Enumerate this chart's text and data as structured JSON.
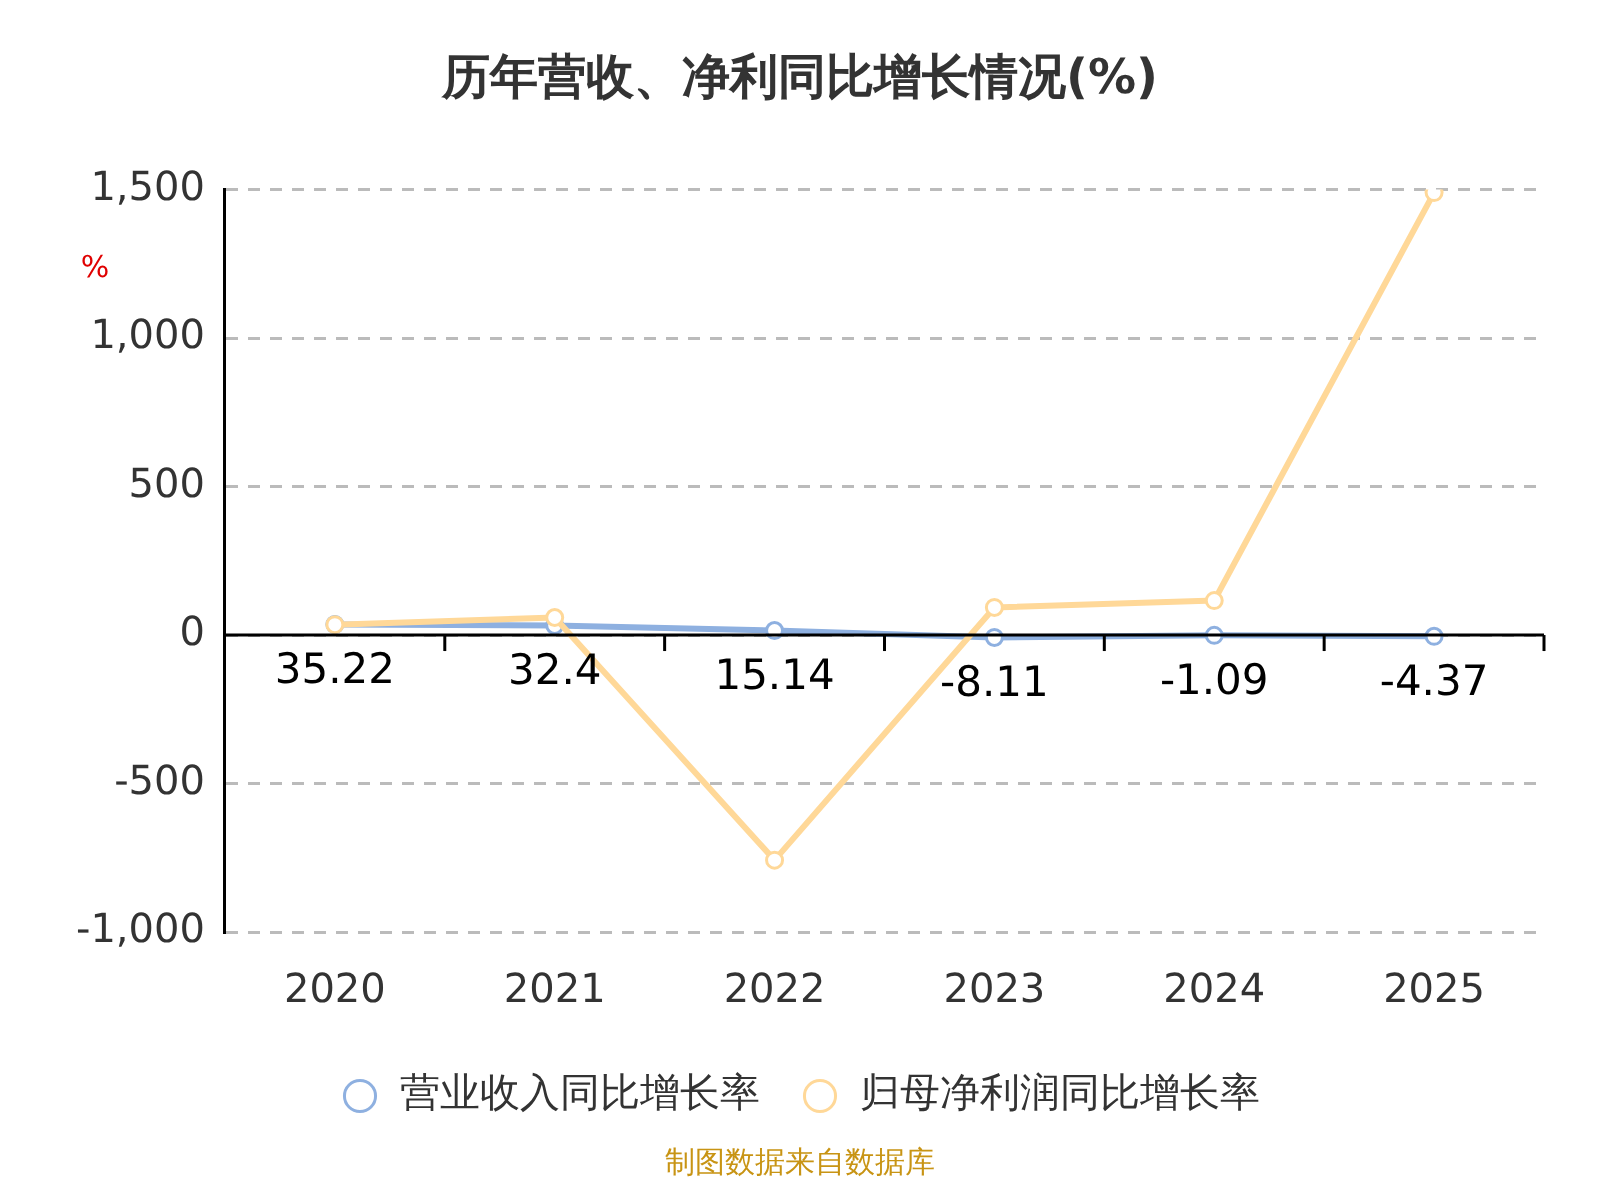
{
  "chart_data": {
    "type": "line",
    "title": "历年营收、净利同比增长情况(%)",
    "ylabel": "%",
    "categories": [
      "2020",
      "2021",
      "2022",
      "2023",
      "2024",
      "2025"
    ],
    "series": [
      {
        "name": "营业收入同比增长率",
        "color": "#8eb0e0",
        "values": [
          35.22,
          32.4,
          15.14,
          -8.11,
          -1.09,
          -4.37
        ],
        "value_labels": [
          "35.22",
          "32.4",
          "15.14",
          "-8.11",
          "-1.09",
          "-4.37"
        ]
      },
      {
        "name": "归母净利润同比增长率",
        "color": "#ffd898",
        "values": [
          35,
          59,
          -758,
          93,
          116,
          1490
        ]
      }
    ],
    "ylim": [
      -1000,
      1500
    ],
    "yticks": [
      {
        "value": -1000,
        "label": "-1,000"
      },
      -500,
      0,
      500,
      {
        "value": 1000,
        "label": "1,000"
      },
      {
        "value": 1500,
        "label": "1,500"
      }
    ],
    "grid": "y",
    "legend": "bottom",
    "marker": "circle",
    "line_style": "solid",
    "annotations": [
      "制图数据来自数据库"
    ]
  }
}
